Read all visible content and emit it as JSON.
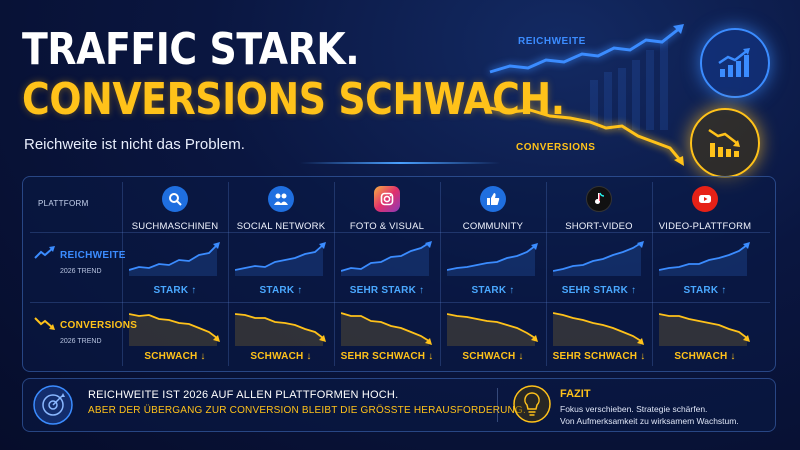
{
  "headline": {
    "line1": "TRAFFIC STARK.",
    "line2": "CONVERSIONS SCHWACH.",
    "subtitle": "Reichweite ist nicht das Problem."
  },
  "hero": {
    "reach_label": "REICHWEITE",
    "conversions_label": "CONVERSIONS",
    "reach_color": "#3b8cff",
    "conversions_color": "#ffc21a",
    "reach_icon": "trend-up-icon",
    "conversions_icon": "trend-down-icon"
  },
  "table": {
    "header_label": "PLATTFORM",
    "platforms": [
      {
        "name": "SUCHMASCHINEN",
        "icon": "search-icon",
        "reach_verdict": "STARK ↑",
        "conv_verdict": "SCHWACH ↓"
      },
      {
        "name": "SOCIAL NETWORK",
        "icon": "people-icon",
        "reach_verdict": "STARK ↑",
        "conv_verdict": "SCHWACH ↓"
      },
      {
        "name": "FOTO & VISUAL",
        "icon": "camera-icon",
        "reach_verdict": "SEHR STARK ↑",
        "conv_verdict": "SEHR SCHWACH ↓"
      },
      {
        "name": "COMMUNITY",
        "icon": "thumbs-up-icon",
        "reach_verdict": "STARK ↑",
        "conv_verdict": "SCHWACH ↓"
      },
      {
        "name": "SHORT-VIDEO",
        "icon": "music-note-icon",
        "reach_verdict": "SEHR STARK ↑",
        "conv_verdict": "SEHR SCHWACH ↓"
      },
      {
        "name": "VIDEO-PLATTFORM",
        "icon": "play-icon",
        "reach_verdict": "STARK ↑",
        "conv_verdict": "SCHWACH ↓"
      }
    ],
    "rows": {
      "reach": {
        "title": "REICHWEITE",
        "subtitle": "2026 TREND",
        "icon": "trend-up-icon"
      },
      "conversions": {
        "title": "CONVERSIONS",
        "subtitle": "2026 TREND",
        "icon": "trend-down-icon"
      }
    }
  },
  "footer": {
    "icon": "target-icon",
    "line1": "REICHWEITE IST 2026 AUF ALLEN PLATTFORMEN HOCH.",
    "line2": "ABER DER ÜBERGANG ZUR CONVERSION BLEIBT DIE GRÖSSTE HERAUSFORDERUNG.",
    "fazit_icon": "lightbulb-icon",
    "fazit_title": "FAZIT",
    "fazit_line1": "Fokus verschieben. Strategie schärfen.",
    "fazit_line2": "Von Aufmerksamkeit zu wirksamem Wachstum."
  }
}
